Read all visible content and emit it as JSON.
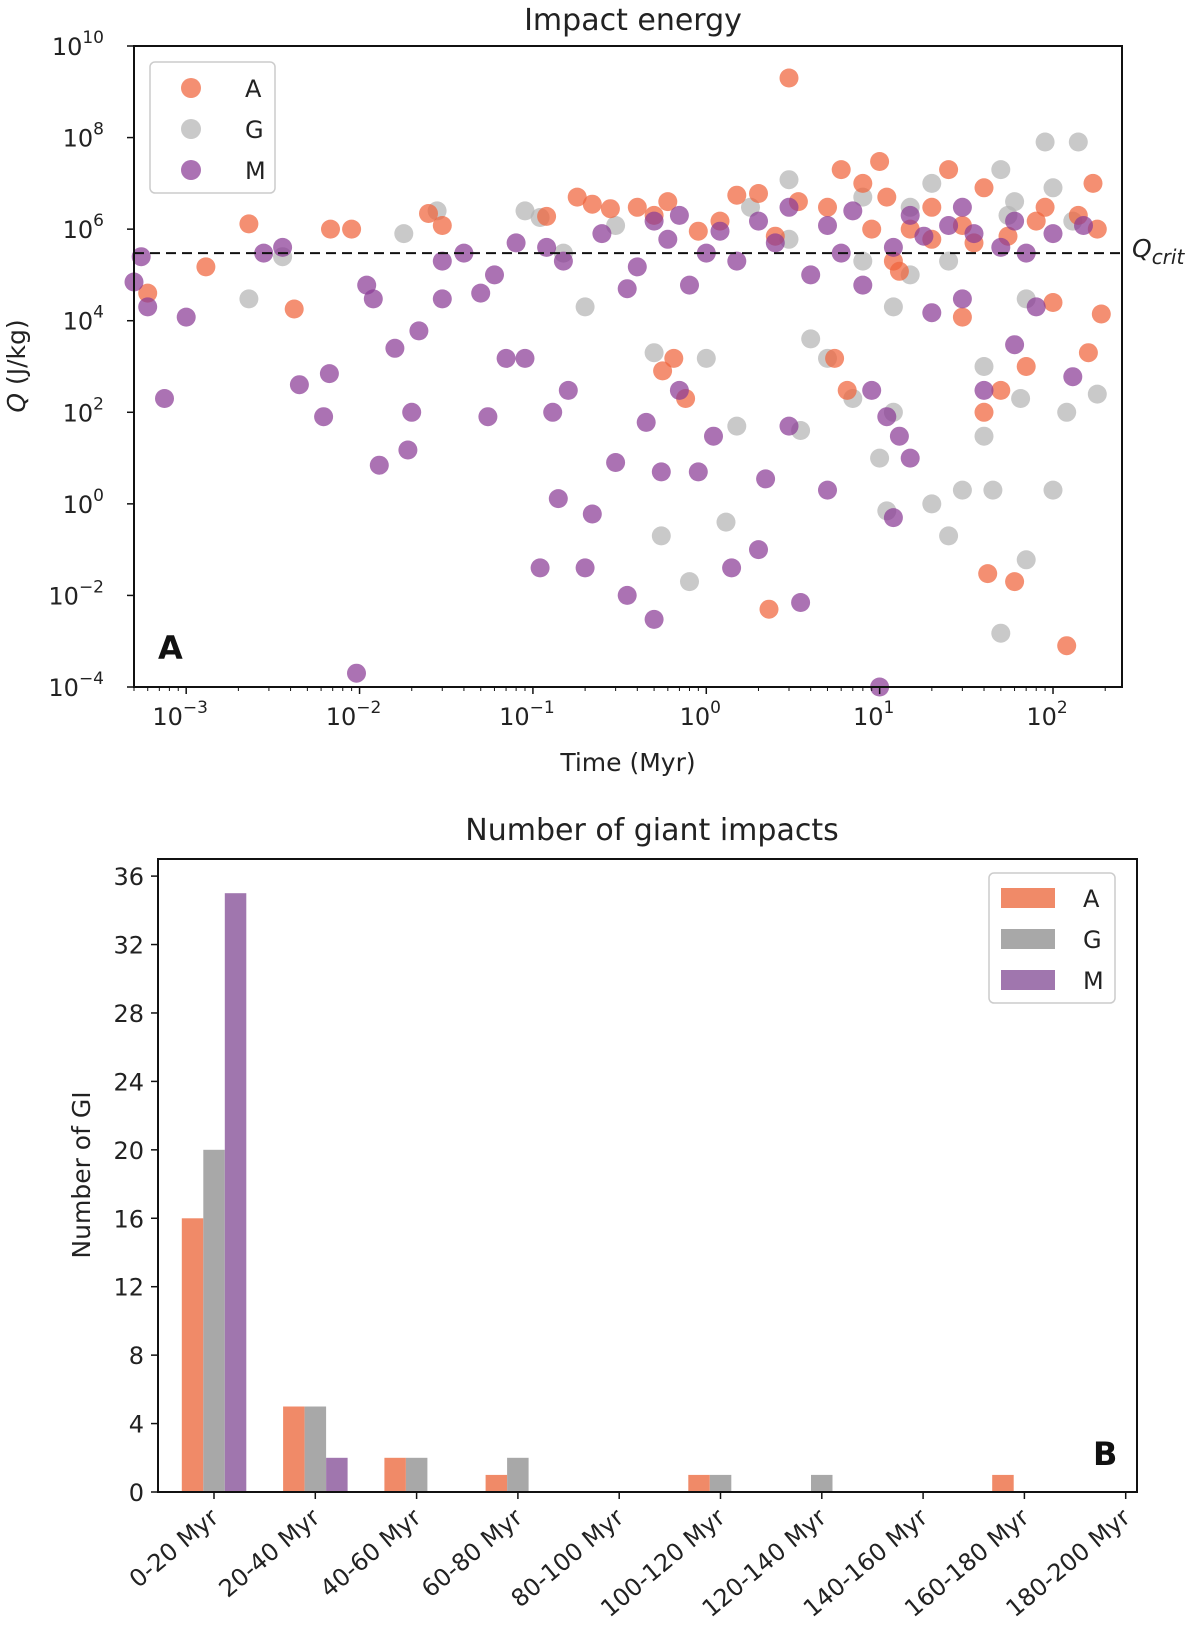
{
  "chart_data": [
    {
      "type": "scatter",
      "title": "Impact energy",
      "xlabel": "Time (Myr)",
      "ylabel": "Q (J/kg)",
      "ylabel_italic": "Q",
      "ylabel_rest": " (J/kg)",
      "xscale": "log",
      "yscale": "log",
      "xlim": [
        0.0005,
        250
      ],
      "ylim": [
        0.0001,
        10000000000
      ],
      "x_ticks": [
        {
          "value": 0.001,
          "base": "10",
          "exp": "−3"
        },
        {
          "value": 0.01,
          "base": "10",
          "exp": "−2"
        },
        {
          "value": 0.1,
          "base": "10",
          "exp": "−1"
        },
        {
          "value": 1,
          "base": "10",
          "exp": "0"
        },
        {
          "value": 10,
          "base": "10",
          "exp": "1"
        },
        {
          "value": 100,
          "base": "10",
          "exp": "2"
        }
      ],
      "y_ticks": [
        {
          "value": 0.0001,
          "base": "10",
          "exp": "−4"
        },
        {
          "value": 0.01,
          "base": "10",
          "exp": "−2"
        },
        {
          "value": 1,
          "base": "10",
          "exp": "0"
        },
        {
          "value": 100,
          "base": "10",
          "exp": "2"
        },
        {
          "value": 10000,
          "base": "10",
          "exp": "4"
        },
        {
          "value": 1000000,
          "base": "10",
          "exp": "6"
        },
        {
          "value": 100000000,
          "base": "10",
          "exp": "8"
        },
        {
          "value": 10000000000,
          "base": "10",
          "exp": "10"
        }
      ],
      "reference_line": {
        "value": 300000,
        "label_main": "Q",
        "label_sub": "crit",
        "style": "dashed"
      },
      "panel_label": "A",
      "legend_position": "top-left",
      "series": [
        {
          "name": "A",
          "color": "#f0643c",
          "points": [
            [
              0.0006,
              40000
            ],
            [
              0.0013,
              150000
            ],
            [
              0.0023,
              1300000
            ],
            [
              0.0042,
              18000
            ],
            [
              0.0068,
              1000000
            ],
            [
              0.009,
              1000000
            ],
            [
              0.025,
              2200000
            ],
            [
              0.03,
              1200000
            ],
            [
              0.12,
              1900000
            ],
            [
              0.18,
              5000000
            ],
            [
              0.22,
              3500000
            ],
            [
              0.28,
              2800000
            ],
            [
              0.4,
              3000000
            ],
            [
              0.5,
              2000000
            ],
            [
              0.56,
              800
            ],
            [
              0.6,
              4000000
            ],
            [
              0.65,
              1500
            ],
            [
              0.76,
              200
            ],
            [
              1.5,
              5500000
            ],
            [
              2,
              6000000
            ],
            [
              2.3,
              0.005
            ],
            [
              3,
              2000000000
            ],
            [
              3.4,
              4000000
            ],
            [
              5.5,
              1500
            ],
            [
              6,
              20000000
            ],
            [
              6.5,
              300
            ],
            [
              8,
              10000000
            ],
            [
              9,
              1000000
            ],
            [
              10,
              30000000
            ],
            [
              12,
              200000
            ],
            [
              13,
              120000
            ],
            [
              15,
              1000000
            ],
            [
              20,
              3000000
            ],
            [
              25,
              20000000
            ],
            [
              30,
              12000
            ],
            [
              35,
              500000
            ],
            [
              40,
              8000000
            ],
            [
              40,
              100
            ],
            [
              42,
              0.03
            ],
            [
              50,
              300
            ],
            [
              60,
              0.02
            ],
            [
              70,
              1000
            ],
            [
              90,
              3000000
            ],
            [
              100,
              25000
            ],
            [
              120,
              0.0008
            ],
            [
              140,
              2000000
            ],
            [
              160,
              2000
            ],
            [
              170,
              10000000
            ],
            [
              190,
              14000
            ],
            [
              180,
              1000000
            ],
            [
              1.2,
              1500000
            ],
            [
              5,
              3000000
            ],
            [
              20,
              600000
            ],
            [
              55,
              700000
            ],
            [
              80,
              1500000
            ],
            [
              0.9,
              900000
            ],
            [
              2.5,
              700000
            ],
            [
              11,
              5000000
            ],
            [
              30,
              1200000
            ]
          ]
        },
        {
          "name": "G",
          "color": "#b4b4b4",
          "points": [
            [
              0.0023,
              30000
            ],
            [
              0.0036,
              250000
            ],
            [
              0.018,
              800000
            ],
            [
              0.028,
              2500000
            ],
            [
              0.09,
              2500000
            ],
            [
              0.11,
              1800000
            ],
            [
              0.15,
              300000
            ],
            [
              0.2,
              20000
            ],
            [
              0.3,
              1200000
            ],
            [
              0.55,
              0.2
            ],
            [
              0.8,
              0.02
            ],
            [
              1,
              1500
            ],
            [
              1.3,
              0.4
            ],
            [
              1.5,
              50
            ],
            [
              3,
              12000000
            ],
            [
              3.5,
              40
            ],
            [
              4,
              4000
            ],
            [
              5,
              1500
            ],
            [
              7,
              200
            ],
            [
              8,
              200000
            ],
            [
              10,
              10
            ],
            [
              11,
              0.7
            ],
            [
              12,
              20000
            ],
            [
              15,
              3000000
            ],
            [
              20,
              1
            ],
            [
              25,
              0.2
            ],
            [
              30,
              2
            ],
            [
              40,
              30
            ],
            [
              45,
              2
            ],
            [
              50,
              0.0015
            ],
            [
              55,
              2000000
            ],
            [
              70,
              0.06
            ],
            [
              90,
              80000000
            ],
            [
              100,
              2
            ],
            [
              120,
              100
            ],
            [
              140,
              80000000
            ],
            [
              180,
              250
            ],
            [
              65,
              200
            ],
            [
              12,
              100
            ],
            [
              8,
              5000000
            ],
            [
              20,
              10000000
            ],
            [
              50,
              20000000
            ],
            [
              1.8,
              3000000
            ],
            [
              0.5,
              2000
            ],
            [
              3,
              600000
            ],
            [
              15,
              100000
            ],
            [
              60,
              4000000
            ],
            [
              100,
              8000000
            ],
            [
              130,
              1500000
            ],
            [
              25,
              200000
            ],
            [
              40,
              1000
            ],
            [
              70,
              30000
            ]
          ]
        },
        {
          "name": "M",
          "color": "#8a3c96",
          "points": [
            [
              0.0005,
              70000
            ],
            [
              0.00055,
              250000
            ],
            [
              0.0006,
              20000
            ],
            [
              0.00075,
              200
            ],
            [
              0.001,
              12000
            ],
            [
              0.0028,
              300000
            ],
            [
              0.0036,
              400000
            ],
            [
              0.0045,
              400
            ],
            [
              0.0062,
              80
            ],
            [
              0.0067,
              700
            ],
            [
              0.0096,
              0.0002
            ],
            [
              0.011,
              60000
            ],
            [
              0.012,
              30000
            ],
            [
              0.013,
              7
            ],
            [
              0.016,
              2500
            ],
            [
              0.019,
              15
            ],
            [
              0.02,
              100
            ],
            [
              0.022,
              6000
            ],
            [
              0.03,
              30000
            ],
            [
              0.05,
              40000
            ],
            [
              0.055,
              80
            ],
            [
              0.07,
              1500
            ],
            [
              0.09,
              1500
            ],
            [
              0.11,
              0.04
            ],
            [
              0.13,
              100
            ],
            [
              0.14,
              1.3
            ],
            [
              0.16,
              300
            ],
            [
              0.2,
              0.04
            ],
            [
              0.22,
              0.6
            ],
            [
              0.3,
              8
            ],
            [
              0.35,
              0.01
            ],
            [
              0.45,
              60
            ],
            [
              0.5,
              0.003
            ],
            [
              0.55,
              5
            ],
            [
              0.7,
              300
            ],
            [
              0.9,
              5
            ],
            [
              1.1,
              30
            ],
            [
              1.4,
              0.04
            ],
            [
              2,
              0.1
            ],
            [
              2.2,
              3.5
            ],
            [
              3,
              50
            ],
            [
              3.5,
              0.007
            ],
            [
              5,
              2
            ],
            [
              9,
              300
            ],
            [
              10,
              0.0001
            ],
            [
              11,
              80
            ],
            [
              12,
              0.5
            ],
            [
              13,
              30
            ],
            [
              15,
              10
            ],
            [
              20,
              15000
            ],
            [
              30,
              30000
            ],
            [
              40,
              300
            ],
            [
              60,
              3000
            ],
            [
              80,
              20000
            ],
            [
              130,
              600
            ],
            [
              0.04,
              300000
            ],
            [
              0.08,
              500000
            ],
            [
              0.15,
              200000
            ],
            [
              0.25,
              800000
            ],
            [
              0.4,
              150000
            ],
            [
              0.6,
              600000
            ],
            [
              0.8,
              60000
            ],
            [
              1,
              300000
            ],
            [
              1.5,
              200000
            ],
            [
              2.5,
              500000
            ],
            [
              4,
              100000
            ],
            [
              6,
              300000
            ],
            [
              8,
              60000
            ],
            [
              12,
              400000
            ],
            [
              18,
              700000
            ],
            [
              25,
              1200000
            ],
            [
              35,
              800000
            ],
            [
              50,
              400000
            ],
            [
              70,
              300000
            ],
            [
              100,
              800000
            ],
            [
              0.03,
              200000
            ],
            [
              0.06,
              100000
            ],
            [
              0.12,
              400000
            ],
            [
              0.35,
              50000
            ],
            [
              0.5,
              1500000
            ],
            [
              0.7,
              2000000
            ],
            [
              1.2,
              900000
            ],
            [
              2,
              1500000
            ],
            [
              3,
              3000000
            ],
            [
              5,
              1200000
            ],
            [
              7,
              2500000
            ],
            [
              15,
              2000000
            ],
            [
              30,
              3000000
            ],
            [
              60,
              1500000
            ],
            [
              150,
              1200000
            ]
          ]
        }
      ]
    },
    {
      "type": "bar",
      "title": "Number of giant impacts",
      "xlabel": "",
      "ylabel": "Number of GI",
      "ylim": [
        0,
        37
      ],
      "y_ticks": [
        0,
        4,
        8,
        12,
        16,
        20,
        24,
        28,
        32,
        36
      ],
      "categories": [
        "0-20 Myr",
        "20-40 Myr",
        "40-60 Myr",
        "60-80 Myr",
        "80-100 Myr",
        "100-120 Myr",
        "120-140 Myr",
        "140-160 Myr",
        "160-180 Myr",
        "180-200 Myr"
      ],
      "panel_label": "B",
      "legend_position": "top-right",
      "series": [
        {
          "name": "A",
          "color": "#f08a68",
          "values": [
            16,
            5,
            2,
            1,
            0,
            1,
            0,
            0,
            1,
            0
          ]
        },
        {
          "name": "G",
          "color": "#a8a8a8",
          "values": [
            20,
            5,
            2,
            2,
            0,
            1,
            1,
            0,
            0,
            0
          ]
        },
        {
          "name": "M",
          "color": "#a076ae",
          "values": [
            35,
            2,
            0,
            0,
            0,
            0,
            0,
            0,
            0,
            0
          ]
        }
      ]
    }
  ]
}
